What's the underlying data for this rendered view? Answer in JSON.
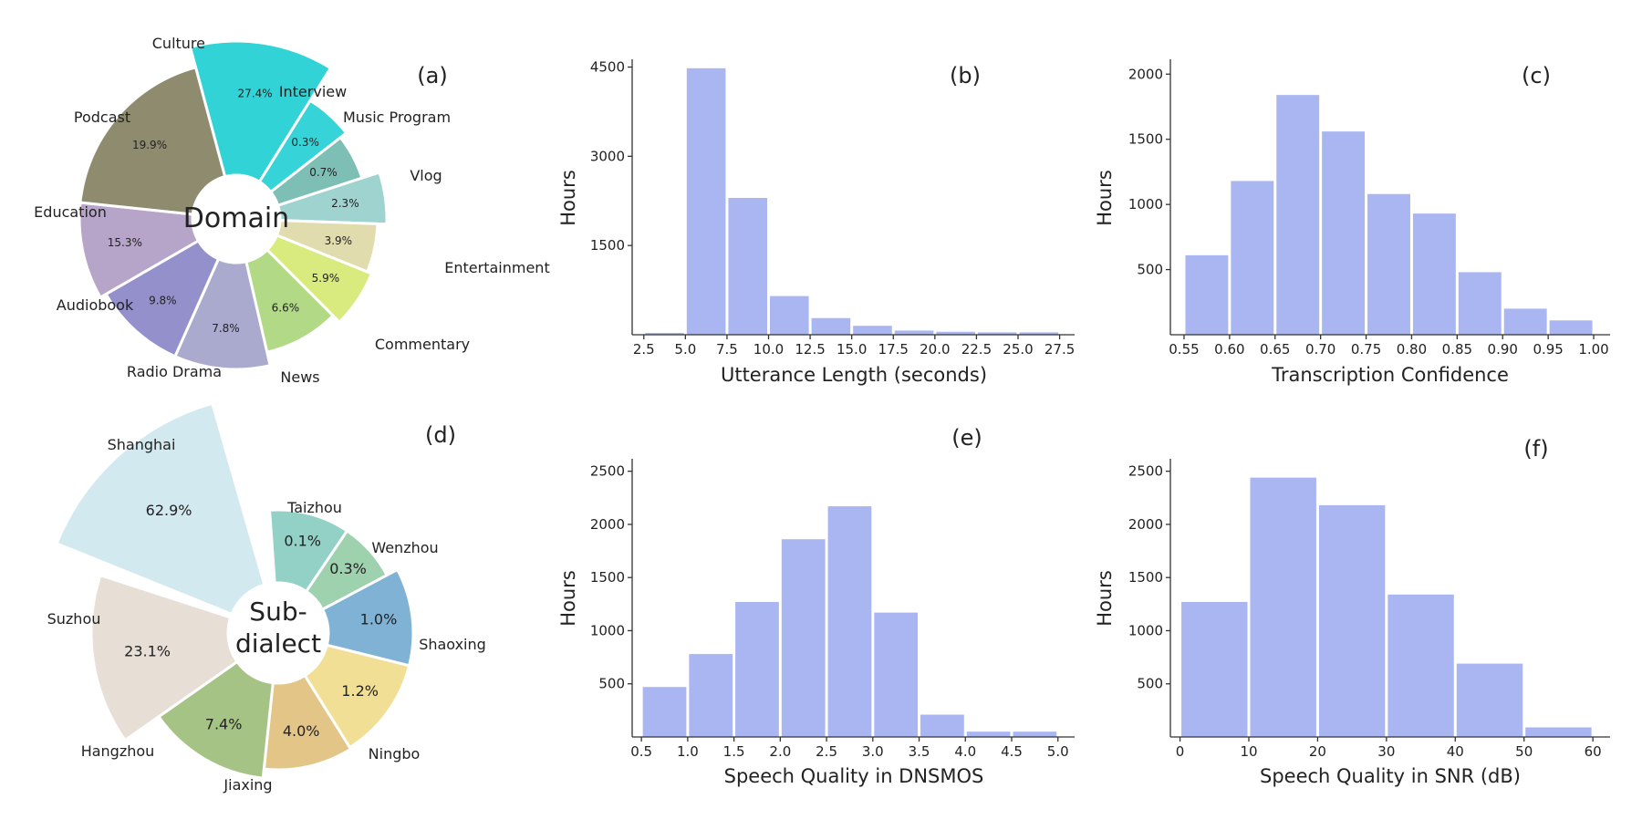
{
  "chart_data": [
    {
      "type": "pie",
      "panel": "(a)",
      "center_label": [
        "Domain"
      ],
      "slices": [
        {
          "label": "Culture",
          "percent": 27.4,
          "color": "#31d3d6"
        },
        {
          "label": "Interview",
          "percent": 0.3,
          "color": "#36d4d8"
        },
        {
          "label": "Music Program",
          "percent": 0.7,
          "color": "#7ebfb5"
        },
        {
          "label": "Vlog",
          "percent": 2.3,
          "color": "#9fd3cf"
        },
        {
          "label": "Entertainment",
          "percent": 3.9,
          "color": "#e1dcae"
        },
        {
          "label": "Commentary",
          "percent": 5.9,
          "color": "#d9ea7e"
        },
        {
          "label": "News",
          "percent": 6.6,
          "color": "#b1d986"
        },
        {
          "label": "Radio Drama",
          "percent": 7.8,
          "color": "#aaaace"
        },
        {
          "label": "Audiobook",
          "percent": 9.8,
          "color": "#9390cc"
        },
        {
          "label": "Education",
          "percent": 15.3,
          "color": "#b6a5c9"
        },
        {
          "label": "Podcast",
          "percent": 19.9,
          "color": "#8f8b6f"
        }
      ]
    },
    {
      "type": "bar",
      "panel": "(b)",
      "xlabel": "Utterance Length (seconds)",
      "ylabel": "Hours",
      "bin_edges": [
        2.5,
        5.0,
        7.5,
        10.0,
        12.5,
        15.0,
        17.5,
        20.0,
        22.5,
        25.0,
        27.5
      ],
      "values": [
        30,
        4480,
        2300,
        650,
        280,
        150,
        70,
        50,
        40,
        40
      ],
      "xlim": [
        1.8,
        28.4
      ],
      "ylim": [
        0,
        4600
      ],
      "xticks": [
        "2.5",
        "5.0",
        "7.5",
        "10.0",
        "12.5",
        "15.0",
        "17.5",
        "20.0",
        "22.5",
        "25.0",
        "27.5"
      ],
      "yticks": [
        "1500",
        "3000",
        "4500"
      ],
      "color": "#a9b6f1"
    },
    {
      "type": "bar",
      "panel": "(c)",
      "xlabel": "Transcription Confidence",
      "ylabel": "Hours",
      "bin_edges": [
        0.55,
        0.6,
        0.65,
        0.7,
        0.75,
        0.8,
        0.85,
        0.9,
        0.95,
        1.0
      ],
      "values": [
        610,
        1180,
        1840,
        1560,
        1080,
        930,
        480,
        200,
        110
      ],
      "xlim": [
        0.535,
        1.018
      ],
      "ylim": [
        0,
        2100
      ],
      "xticks": [
        "0.55",
        "0.60",
        "0.65",
        "0.70",
        "0.75",
        "0.80",
        "0.85",
        "0.90",
        "0.95",
        "1.00"
      ],
      "yticks": [
        "500",
        "1000",
        "1500",
        "2000"
      ],
      "color": "#a9b6f1"
    },
    {
      "type": "pie",
      "panel": "(d)",
      "center_label": [
        "Sub-",
        "dialect"
      ],
      "slices": [
        {
          "label": "Shanghai",
          "percent": 62.9,
          "color": "#d3e9f0"
        },
        {
          "label": "Taizhou",
          "percent": 0.1,
          "color": "#93d1c6"
        },
        {
          "label": "Wenzhou",
          "percent": 0.3,
          "color": "#9ed1ad"
        },
        {
          "label": "Shaoxing",
          "percent": 1.0,
          "color": "#7fb2d4"
        },
        {
          "label": "Ningbo",
          "percent": 1.2,
          "color": "#f1df95"
        },
        {
          "label": "Jiaxing",
          "percent": 4.0,
          "color": "#e3c588"
        },
        {
          "label": "Hangzhou",
          "percent": 7.4,
          "color": "#a6c386"
        },
        {
          "label": "Suzhou",
          "percent": 23.1,
          "color": "#e7ded6"
        }
      ]
    },
    {
      "type": "bar",
      "panel": "(e)",
      "xlabel": "Speech Quality in DNSMOS",
      "ylabel": "Hours",
      "bin_edges": [
        0.5,
        1.0,
        1.5,
        2.0,
        2.5,
        3.0,
        3.5,
        4.0,
        4.5,
        5.0
      ],
      "values": [
        470,
        780,
        1270,
        1860,
        2170,
        1170,
        210,
        50,
        50
      ],
      "xlim": [
        0.4,
        5.18
      ],
      "ylim": [
        0,
        2600
      ],
      "xticks": [
        "0.5",
        "1.0",
        "1.5",
        "2.0",
        "2.5",
        "3.0",
        "3.5",
        "4.0",
        "4.5",
        "5.0"
      ],
      "yticks": [
        "500",
        "1000",
        "1500",
        "2000",
        "2500"
      ],
      "color": "#a9b6f1"
    },
    {
      "type": "bar",
      "panel": "(f)",
      "xlabel": "Speech Quality in SNR (dB)",
      "ylabel": "Hours",
      "bin_edges": [
        0,
        10,
        20,
        30,
        40,
        50,
        60
      ],
      "values": [
        1270,
        2440,
        2180,
        1340,
        690,
        90
      ],
      "xlim": [
        -1.4,
        62.5
      ],
      "ylim": [
        0,
        2600
      ],
      "xticks": [
        "0",
        "10",
        "20",
        "30",
        "40",
        "50",
        "60"
      ],
      "yticks": [
        "500",
        "1000",
        "1500",
        "2000",
        "2500"
      ],
      "color": "#a9b6f1"
    }
  ]
}
